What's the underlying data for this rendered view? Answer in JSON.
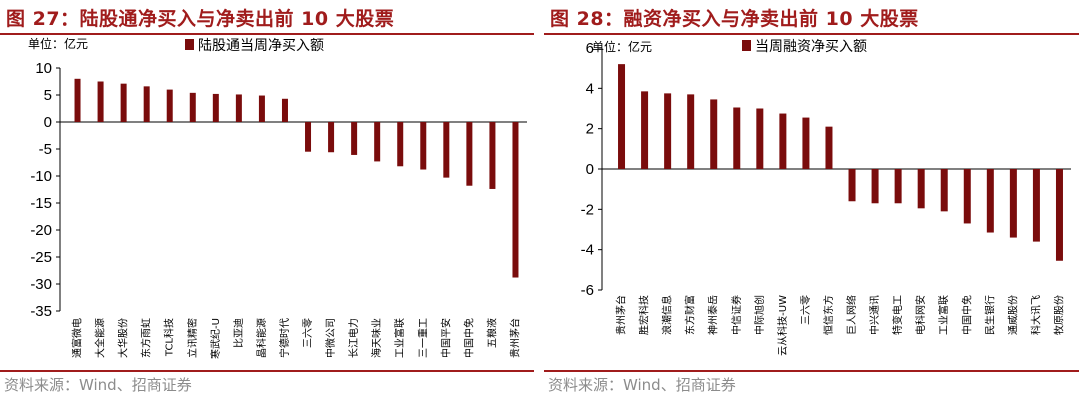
{
  "panels": {
    "left": {
      "title": "图 27：陆股通净买入与净卖出前 10 大股票",
      "source": "资料来源：Wind、招商证券"
    },
    "right": {
      "title": "图 28：融资净买入与净卖出前 10 大股票",
      "source": "资料来源：Wind、招商证券"
    }
  },
  "colors": {
    "accent": "#a01c1c",
    "bar": "#7a0c0c",
    "source": "#8c8c8c"
  },
  "chart_data": [
    {
      "type": "bar",
      "unit_label": "单位：亿元",
      "series": [
        {
          "name": "陆股通当周净买入额",
          "values": [
            8.0,
            7.5,
            7.1,
            6.6,
            6.0,
            5.4,
            5.2,
            5.1,
            4.9,
            4.3,
            -5.5,
            -5.6,
            -6.1,
            -7.3,
            -8.2,
            -8.8,
            -10.3,
            -11.8,
            -12.4,
            -28.8
          ]
        }
      ],
      "categories": [
        "通富微电",
        "大全能源",
        "大华股份",
        "东方雨虹",
        "TCL科技",
        "立讯精密",
        "寒武纪-U",
        "比亚迪",
        "晶科能源",
        "宁德时代",
        "三六零",
        "中微公司",
        "长江电力",
        "海天味业",
        "工业富联",
        "三一重工",
        "中国平安",
        "中国中免",
        "五粮液",
        "贵州茅台"
      ],
      "ylim": [
        -35,
        10
      ],
      "yticks": [
        "10",
        "5",
        "0",
        "-5",
        "-10",
        "-15",
        "-20",
        "-25",
        "-30",
        "-35"
      ],
      "legend_position": "top"
    },
    {
      "type": "bar",
      "unit_label": "单位：亿元",
      "series": [
        {
          "name": "当周融资净买入额",
          "values": [
            5.2,
            3.85,
            3.75,
            3.7,
            3.45,
            3.05,
            3.0,
            2.75,
            2.55,
            2.1,
            -1.6,
            -1.7,
            -1.7,
            -1.95,
            -2.1,
            -2.7,
            -3.15,
            -3.4,
            -3.6,
            -4.55
          ]
        }
      ],
      "categories": [
        "贵州茅台",
        "胜宏科技",
        "浪潮信息",
        "东方财富",
        "神州泰岳",
        "中信证券",
        "中际旭创",
        "云从科技-UW",
        "三六零",
        "恒信东方",
        "巨人网络",
        "中兴通讯",
        "特变电工",
        "电科网安",
        "工业富联",
        "中国中免",
        "民生银行",
        "通威股份",
        "科大讯飞",
        "牧原股份"
      ],
      "ylim": [
        -6,
        6
      ],
      "yticks": [
        "6",
        "4",
        "2",
        "0",
        "-2",
        "-4",
        "-6"
      ],
      "legend_position": "top"
    }
  ]
}
